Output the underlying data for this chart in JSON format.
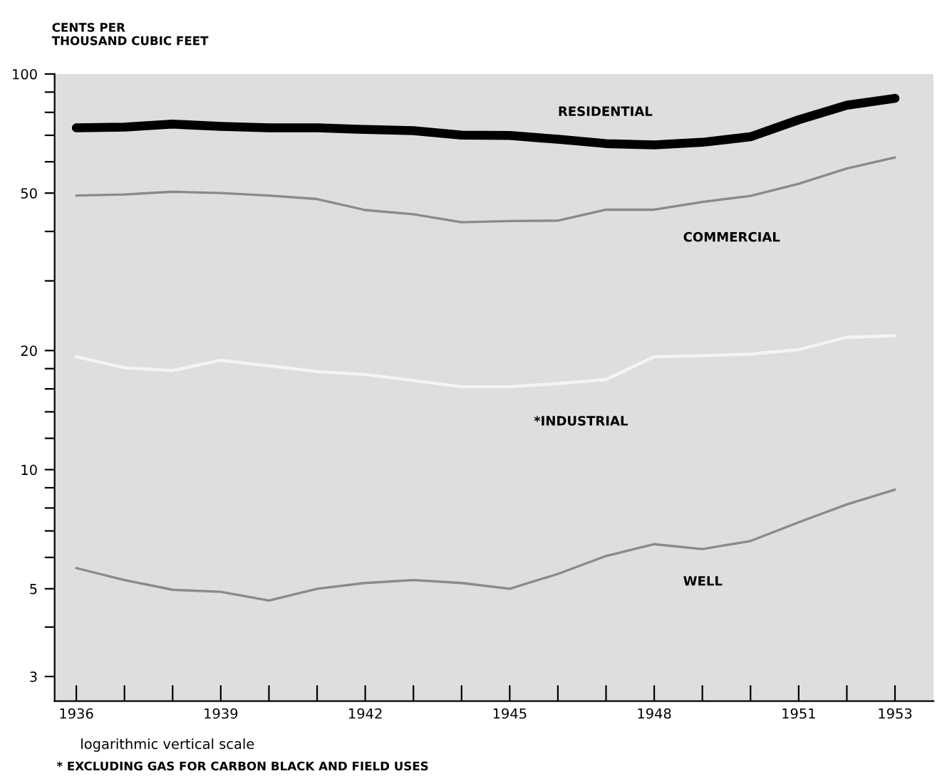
{
  "chart_data": {
    "type": "line",
    "ylabel": "CENTS PER\nTHOUSAND CUBIC FEET",
    "x": [
      1936,
      1937,
      1938,
      1939,
      1940,
      1941,
      1942,
      1943,
      1944,
      1945,
      1946,
      1947,
      1948,
      1949,
      1950,
      1951,
      1952,
      1953
    ],
    "series": [
      {
        "name": "RESIDENTIAL",
        "color": "#000000",
        "values": [
          73.1,
          73.4,
          74.7,
          73.7,
          73.1,
          73.1,
          72.4,
          71.9,
          70.1,
          69.9,
          68.4,
          66.7,
          66.2,
          67.2,
          69.4,
          76.6,
          83.4,
          86.8
        ]
      },
      {
        "name": "COMMERCIAL",
        "color": "#8a8a8a",
        "values": [
          49.3,
          49.6,
          50.4,
          50,
          49.3,
          48.3,
          45.3,
          44.2,
          42.2,
          42.5,
          42.6,
          45.4,
          45.4,
          47.5,
          49.2,
          52.8,
          57.7,
          61.5
        ]
      },
      {
        "name": "*INDUSTRIAL",
        "color": "#f4f4f4",
        "values": [
          19.3,
          18.1,
          17.8,
          18.9,
          18.3,
          17.7,
          17.4,
          16.8,
          16.2,
          16.2,
          16.5,
          16.9,
          19.3,
          19.4,
          19.6,
          20.1,
          21.6,
          21.8
        ]
      },
      {
        "name": "WELL",
        "color": "#8a8a8a",
        "values": [
          5.64,
          5.26,
          4.97,
          4.91,
          4.67,
          5.0,
          5.17,
          5.26,
          5.17,
          5.0,
          5.45,
          6.05,
          6.48,
          6.3,
          6.6,
          7.36,
          8.17,
          8.9
        ]
      }
    ],
    "log": "y",
    "ylim": [
      2.6,
      100
    ],
    "yticks": [
      3,
      {
        "value": 4,
        "label": null
      },
      5,
      {
        "value": 6,
        "label": null
      },
      {
        "value": 7,
        "label": null
      },
      {
        "value": 8,
        "label": null
      },
      {
        "value": 9,
        "label": null
      },
      10,
      {
        "value": 12,
        "label": null
      },
      {
        "value": 14,
        "label": null
      },
      {
        "value": 16,
        "label": null
      },
      {
        "value": 18,
        "label": null
      },
      20,
      {
        "value": 30,
        "label": null
      },
      {
        "value": 40,
        "label": null
      },
      50,
      {
        "value": 60,
        "label": null
      },
      {
        "value": 70,
        "label": null
      },
      {
        "value": 80,
        "label": null
      },
      {
        "value": 90,
        "label": null
      },
      100
    ],
    "xlim": [
      1935.55,
      1953.8
    ],
    "xticks": [
      1936,
      {
        "value": 1937,
        "label": null
      },
      {
        "value": 1938,
        "label": null
      },
      1939,
      {
        "value": 1940,
        "label": null
      },
      {
        "value": 1941,
        "label": null
      },
      1942,
      {
        "value": 1943,
        "label": null
      },
      {
        "value": 1944,
        "label": null
      },
      1945,
      {
        "value": 1946,
        "label": null
      },
      {
        "value": 1947,
        "label": null
      },
      1948,
      {
        "value": 1949,
        "label": null
      },
      {
        "value": 1950,
        "label": null
      },
      1951,
      {
        "value": 1952,
        "label": null
      },
      1953
    ],
    "annotations": [
      "logarithmic vertical scale",
      "* EXCLUDING GAS FOR CARBON BLACK AND FIELD USES"
    ],
    "grid": false,
    "legend": false,
    "marker": "none",
    "line_style": "solid"
  }
}
